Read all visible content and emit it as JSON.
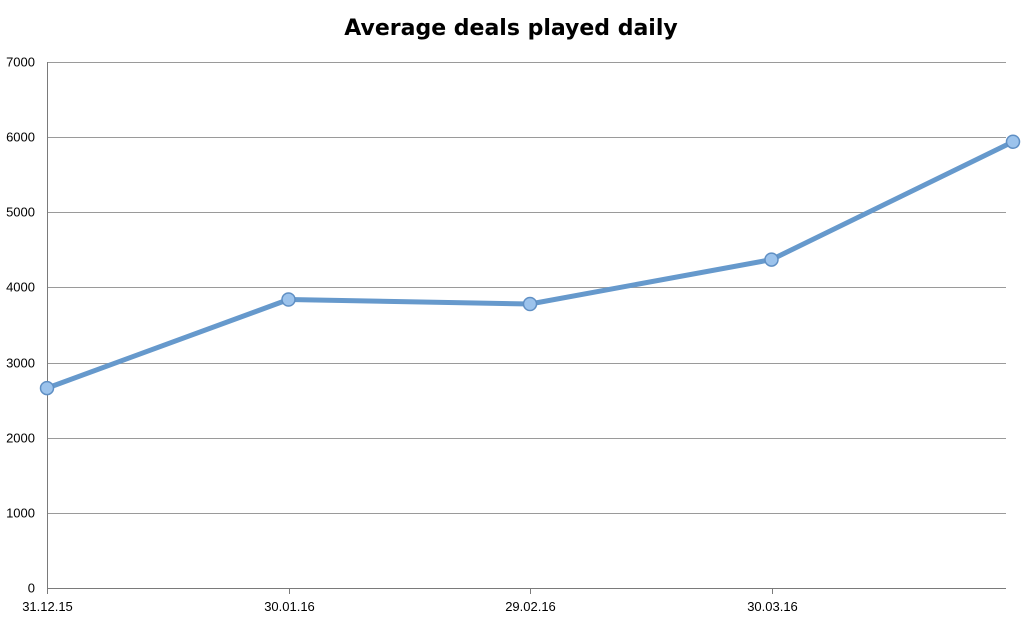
{
  "chart_data": {
    "type": "line",
    "title": "Average deals played daily",
    "xlabel": "",
    "ylabel": "",
    "x": [
      "31.12.15",
      "30.01.16",
      "29.02.16",
      "30.03.16",
      ""
    ],
    "tick_labels_x": [
      "31.12.15",
      "30.01.16",
      "29.02.16",
      "30.03.16"
    ],
    "y_ticks": [
      "0",
      "1000",
      "2000",
      "3000",
      "4000",
      "5000",
      "6000",
      "7000"
    ],
    "ylim": [
      0,
      7000
    ],
    "grid": true,
    "legend": "none",
    "series": [
      {
        "values": [
          2660,
          3840,
          3780,
          4370,
          5940
        ]
      }
    ],
    "colors": {
      "line": "#6699cc",
      "marker_fill": "#9cc3ec",
      "marker_stroke": "#5f8fc4"
    }
  }
}
